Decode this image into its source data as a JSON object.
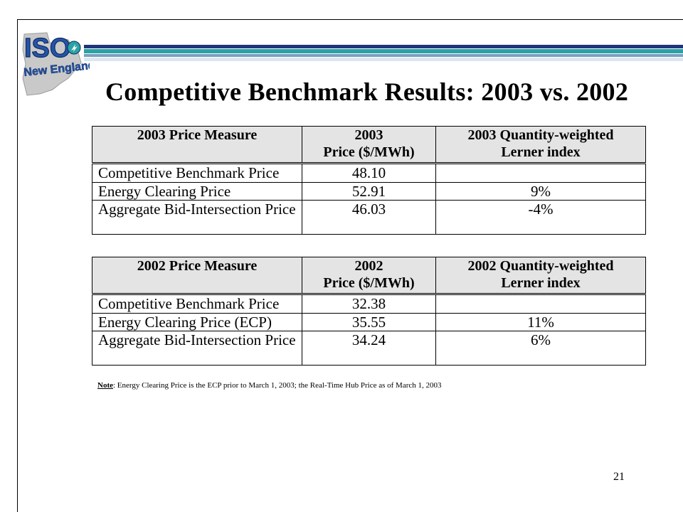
{
  "logo": {
    "text_top": "ISO",
    "text_bottom": "New England"
  },
  "title": "Competitive Benchmark Results: 2003 vs. 2002",
  "tables": [
    {
      "headers": [
        "2003 Price Measure",
        "2003\nPrice ($/MWh)",
        "2003 Quantity-weighted\nLerner index"
      ],
      "rows": [
        {
          "measure": "Competitive Benchmark Price",
          "price": "48.10",
          "lerner": ""
        },
        {
          "measure": "Energy Clearing Price",
          "price": "52.91",
          "lerner": "9%"
        },
        {
          "measure": "Aggregate Bid-Intersection Price",
          "price": "46.03",
          "lerner": "-4%"
        }
      ]
    },
    {
      "headers": [
        "2002 Price Measure",
        "2002\nPrice ($/MWh)",
        "2002 Quantity-weighted\nLerner index"
      ],
      "rows": [
        {
          "measure": "Competitive Benchmark Price",
          "price": "32.38",
          "lerner": ""
        },
        {
          "measure": "Energy Clearing Price (ECP)",
          "price": "35.55",
          "lerner": "11%"
        },
        {
          "measure": "Aggregate Bid-Intersection Price",
          "price": "34.24",
          "lerner": "6%"
        }
      ]
    }
  ],
  "note": {
    "label": "Note",
    "text": ": Energy Clearing Price is the ECP prior to March 1, 2003;  the Real-Time Hub Price as of March 1, 2003"
  },
  "page_number": "21",
  "colors": {
    "stripe_navy": "#21347a",
    "stripe_teal": "#2aa3a4",
    "logo_blue": "#2456a6",
    "header_fill": "#e4e4e4"
  }
}
